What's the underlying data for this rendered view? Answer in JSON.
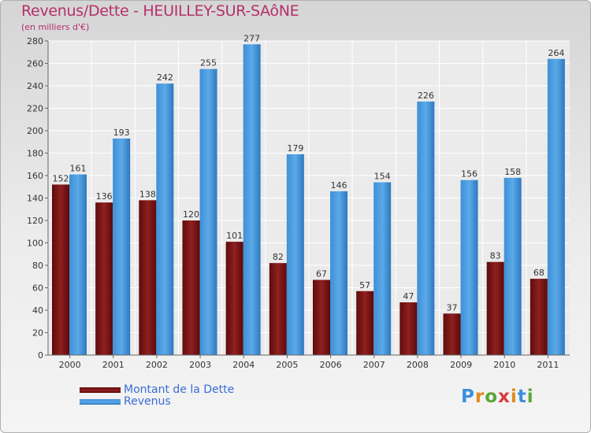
{
  "title": "Revenus/Dette - HEUILLEY-SUR-SAôNE",
  "subtitle": "(en milliers d'€)",
  "logo_text": "Proxiti",
  "colors": {
    "dette": "#8b1a1a",
    "revenus": "#4a9de0",
    "title": "#b5306a",
    "legend_text": "#3a6cd6"
  },
  "chart_data": {
    "type": "bar",
    "categories": [
      "2000",
      "2001",
      "2002",
      "2003",
      "2004",
      "2005",
      "2006",
      "2007",
      "2008",
      "2009",
      "2010",
      "2011"
    ],
    "series": [
      {
        "name": "Montant de la Dette",
        "values": [
          152,
          136,
          138,
          120,
          101,
          82,
          67,
          57,
          47,
          37,
          83,
          68
        ]
      },
      {
        "name": "Revenus",
        "values": [
          161,
          193,
          242,
          255,
          277,
          179,
          146,
          154,
          226,
          156,
          158,
          264
        ]
      }
    ],
    "ylim": [
      0,
      280
    ],
    "yticks": [
      0,
      20,
      40,
      60,
      80,
      100,
      120,
      140,
      160,
      180,
      200,
      220,
      240,
      260,
      280
    ],
    "grid": true,
    "legend_position": "bottom-left"
  }
}
